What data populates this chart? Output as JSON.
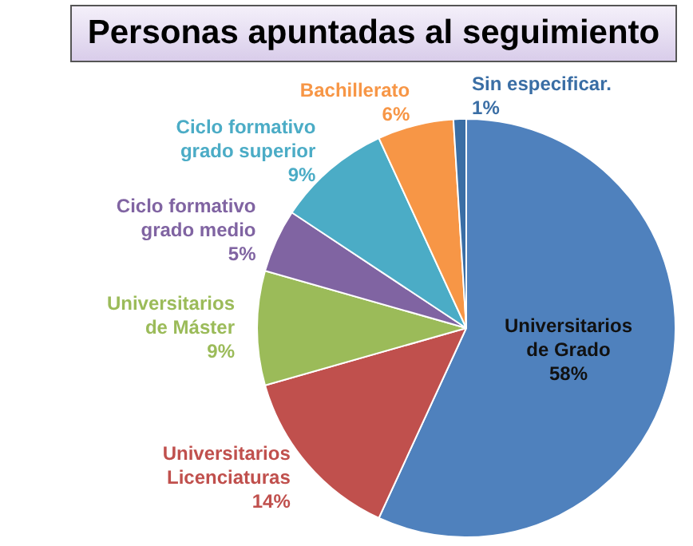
{
  "chart_data": {
    "type": "pie",
    "title": "Personas apuntadas al seguimiento",
    "categories": [
      "Universitarios\nde Grado",
      "Universitarios\nLicenciaturas",
      "Universitarios\nde Máster",
      "Ciclo formativo\ngrado medio",
      "Ciclo formativo\ngrado superior",
      "Bachillerato",
      "Sin especificar."
    ],
    "values": [
      58,
      14,
      9,
      5,
      9,
      6,
      1
    ],
    "value_labels": [
      "58%",
      "14%",
      "9%",
      "5%",
      "9%",
      "6%",
      "1%"
    ],
    "colors": [
      "#4f81bd",
      "#c0504d",
      "#9bbb59",
      "#8064a2",
      "#4bacc6",
      "#f79646",
      "#3a6ea5"
    ],
    "legend": false
  }
}
